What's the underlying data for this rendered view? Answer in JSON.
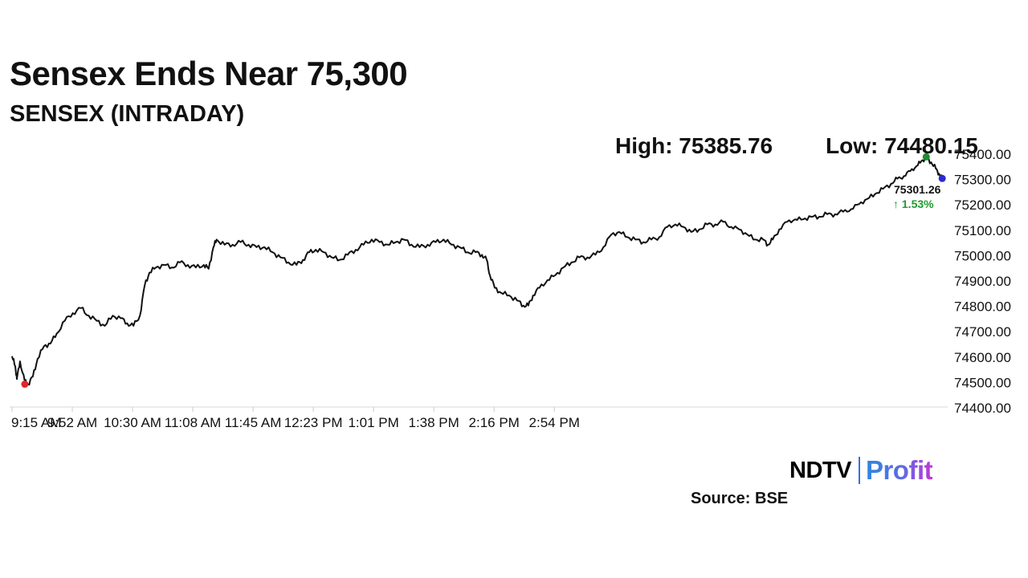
{
  "header": {
    "title": "Sensex Ends Near 75,300",
    "subtitle": "SENSEX (INTRADAY)",
    "high_label": "High: 75385.76",
    "low_label": "Low: 74480.15"
  },
  "chart_data": {
    "type": "line",
    "x_ticks": [
      "9:15 AM",
      "9:52 AM",
      "10:30 AM",
      "11:08 AM",
      "11:45 AM",
      "12:23 PM",
      "1:01 PM",
      "1:38 PM",
      "2:16 PM",
      "2:54 PM"
    ],
    "y_ticks": [
      "74400.00",
      "74500.00",
      "74600.00",
      "74700.00",
      "74800.00",
      "74900.00",
      "75000.00",
      "75100.00",
      "75200.00",
      "75300.00",
      "75400.00"
    ],
    "ylim": [
      74400,
      75400
    ],
    "grid": false,
    "series": [
      {
        "color": "#111111",
        "points": [
          [
            0,
            74600
          ],
          [
            2,
            74560
          ],
          [
            3,
            74510
          ],
          [
            5,
            74580
          ],
          [
            8,
            74500
          ],
          [
            10,
            74490
          ],
          [
            13,
            74520
          ],
          [
            16,
            74590
          ],
          [
            20,
            74640
          ],
          [
            24,
            74650
          ],
          [
            28,
            74690
          ],
          [
            33,
            74740
          ],
          [
            38,
            74770
          ],
          [
            43,
            74790
          ],
          [
            48,
            74760
          ],
          [
            53,
            74740
          ],
          [
            58,
            74720
          ],
          [
            63,
            74760
          ],
          [
            68,
            74750
          ],
          [
            72,
            74730
          ],
          [
            76,
            74720
          ],
          [
            80,
            74760
          ],
          [
            83,
            74880
          ],
          [
            86,
            74930
          ],
          [
            90,
            74950
          ],
          [
            95,
            74960
          ],
          [
            100,
            74950
          ],
          [
            105,
            74970
          ],
          [
            110,
            74960
          ],
          [
            115,
            74950
          ],
          [
            120,
            74960
          ],
          [
            123,
            74945
          ],
          [
            126,
            75030
          ],
          [
            128,
            75060
          ],
          [
            133,
            75040
          ],
          [
            138,
            75040
          ],
          [
            143,
            75050
          ],
          [
            148,
            75040
          ],
          [
            153,
            75030
          ],
          [
            158,
            75030
          ],
          [
            163,
            75010
          ],
          [
            168,
            74990
          ],
          [
            173,
            74970
          ],
          [
            178,
            74960
          ],
          [
            182,
            74980
          ],
          [
            186,
            75010
          ],
          [
            190,
            75020
          ],
          [
            195,
            75010
          ],
          [
            200,
            74990
          ],
          [
            205,
            74980
          ],
          [
            210,
            75000
          ],
          [
            215,
            75020
          ],
          [
            220,
            75040
          ],
          [
            225,
            75060
          ],
          [
            230,
            75050
          ],
          [
            235,
            75040
          ],
          [
            240,
            75050
          ],
          [
            245,
            75060
          ],
          [
            250,
            75040
          ],
          [
            255,
            75030
          ],
          [
            260,
            75040
          ],
          [
            265,
            75050
          ],
          [
            270,
            75060
          ],
          [
            275,
            75040
          ],
          [
            280,
            75030
          ],
          [
            285,
            75010
          ],
          [
            290,
            75010
          ],
          [
            294,
            75000
          ],
          [
            297,
            74980
          ],
          [
            299,
            74920
          ],
          [
            302,
            74870
          ],
          [
            306,
            74850
          ],
          [
            311,
            74840
          ],
          [
            316,
            74820
          ],
          [
            320,
            74800
          ],
          [
            323,
            74800
          ],
          [
            326,
            74840
          ],
          [
            330,
            74870
          ],
          [
            335,
            74900
          ],
          [
            340,
            74920
          ],
          [
            345,
            74950
          ],
          [
            350,
            74970
          ],
          [
            355,
            74990
          ],
          [
            360,
            74990
          ],
          [
            365,
            75000
          ],
          [
            370,
            75030
          ],
          [
            375,
            75080
          ],
          [
            380,
            75090
          ],
          [
            385,
            75070
          ],
          [
            390,
            75060
          ],
          [
            395,
            75050
          ],
          [
            400,
            75060
          ],
          [
            405,
            75070
          ],
          [
            410,
            75110
          ],
          [
            415,
            75120
          ],
          [
            420,
            75110
          ],
          [
            425,
            75090
          ],
          [
            430,
            75100
          ],
          [
            435,
            75120
          ],
          [
            440,
            75120
          ],
          [
            445,
            75130
          ],
          [
            450,
            75110
          ],
          [
            455,
            75100
          ],
          [
            460,
            75080
          ],
          [
            465,
            75060
          ],
          [
            470,
            75060
          ],
          [
            473,
            75040
          ],
          [
            476,
            75060
          ],
          [
            480,
            75100
          ],
          [
            485,
            75130
          ],
          [
            490,
            75140
          ],
          [
            495,
            75140
          ],
          [
            500,
            75150
          ],
          [
            505,
            75150
          ],
          [
            510,
            75160
          ],
          [
            515,
            75160
          ],
          [
            520,
            75170
          ],
          [
            525,
            75180
          ],
          [
            530,
            75200
          ],
          [
            535,
            75220
          ],
          [
            540,
            75240
          ],
          [
            545,
            75260
          ],
          [
            550,
            75280
          ],
          [
            554,
            75300
          ],
          [
            558,
            75310
          ],
          [
            562,
            75330
          ],
          [
            566,
            75350
          ],
          [
            569,
            75370
          ],
          [
            572,
            75380
          ],
          [
            575,
            75365
          ],
          [
            578,
            75340
          ],
          [
            580,
            75320
          ],
          [
            582,
            75301
          ]
        ]
      }
    ],
    "markers": {
      "low_dot": {
        "x": 8,
        "y": 74490,
        "color": "#e3262a"
      },
      "high_dot": {
        "x": 572,
        "y": 75386,
        "color": "#1f8c2e"
      },
      "last_dot": {
        "x": 582,
        "y": 75301,
        "color": "#2b2bd0"
      }
    },
    "last_value_label": "75301.26",
    "change_label": "↑ 1.53%",
    "change_color": "#1e9b2e"
  },
  "footer": {
    "logo_ndtv": "NDTV",
    "logo_profit": "Profit",
    "source": "Source: BSE"
  }
}
